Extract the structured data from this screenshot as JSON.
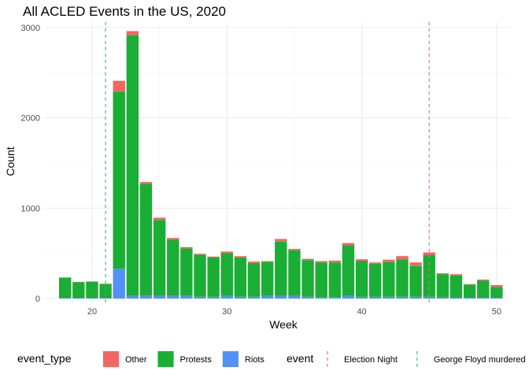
{
  "chart_data": {
    "type": "bar",
    "stacked": true,
    "title": "All ACLED Events in the US, 2020",
    "xlabel": "Week",
    "ylabel": "Count",
    "xlim": [
      16.5,
      51
    ],
    "ylim": [
      -60,
      3060
    ],
    "x_ticks": [
      20,
      30,
      40,
      50
    ],
    "y_ticks": [
      0,
      1000,
      2000,
      3000
    ],
    "grid": true,
    "legend_position": "bottom",
    "x": [
      18,
      19,
      20,
      21,
      22,
      23,
      24,
      25,
      26,
      27,
      28,
      29,
      30,
      31,
      32,
      33,
      34,
      35,
      36,
      37,
      38,
      39,
      40,
      41,
      42,
      43,
      44,
      45,
      46,
      47,
      48,
      49,
      50
    ],
    "series": [
      {
        "name": "Riots",
        "color": "#5390F7",
        "values": [
          5,
          5,
          5,
          5,
          330,
          30,
          30,
          30,
          30,
          30,
          20,
          20,
          30,
          20,
          20,
          30,
          30,
          30,
          20,
          15,
          15,
          30,
          20,
          20,
          20,
          20,
          20,
          20,
          15,
          10,
          10,
          10,
          10
        ]
      },
      {
        "name": "Protests",
        "color": "#1AAE35",
        "values": [
          225,
          175,
          180,
          155,
          1960,
          2885,
          1240,
          840,
          620,
          525,
          465,
          435,
          475,
          435,
          375,
          375,
          600,
          505,
          405,
          385,
          385,
          560,
          395,
          365,
          385,
          415,
          340,
          460,
          255,
          245,
          145,
          190,
          120
        ]
      },
      {
        "name": "Other",
        "color": "#F16663",
        "values": [
          5,
          5,
          5,
          5,
          120,
          45,
          20,
          25,
          20,
          15,
          10,
          10,
          15,
          15,
          15,
          10,
          30,
          15,
          15,
          15,
          20,
          25,
          20,
          15,
          25,
          35,
          40,
          30,
          10,
          15,
          5,
          10,
          20
        ]
      }
    ],
    "vlines": [
      {
        "name": "Election Night",
        "x": 45,
        "color": "#F16663"
      },
      {
        "name": "George Floyd murdered",
        "x": 21,
        "color": "#17B4C4"
      }
    ],
    "legend": {
      "fill_title": "event_type",
      "fill_entries": [
        {
          "label": "Other",
          "color": "#F16663"
        },
        {
          "label": "Protests",
          "color": "#1AAE35"
        },
        {
          "label": "Riots",
          "color": "#5390F7"
        }
      ],
      "line_title": "event",
      "line_entries": [
        {
          "label": "Election Night",
          "color": "#F16663"
        },
        {
          "label": "George Floyd murdered",
          "color": "#17B4C4"
        }
      ]
    }
  }
}
